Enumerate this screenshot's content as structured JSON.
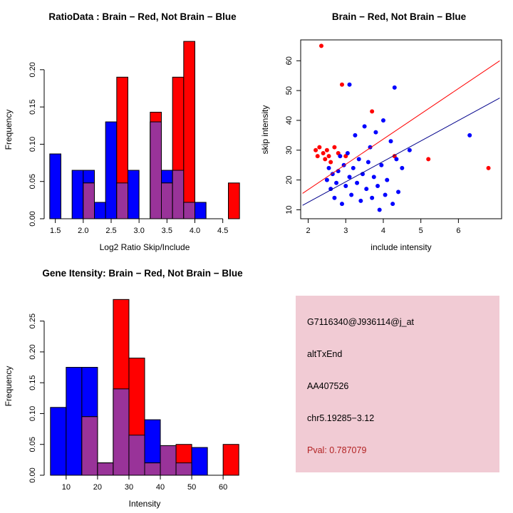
{
  "figure": {
    "background": "#ffffff"
  },
  "chart_data": [
    {
      "type": "bar",
      "variant": "overlapping-histogram",
      "title": "RatioData : Brain − Red, Not Brain − Blue",
      "xlabel": "Log2 Ratio Skip/Include",
      "ylabel": "Frequency",
      "xlim": [
        1.3,
        4.9
      ],
      "ylim": [
        0,
        0.24
      ],
      "xticks": {
        "values": [
          1.5,
          2.0,
          2.5,
          3.0,
          3.5,
          4.0,
          4.5
        ],
        "labels": [
          "1.5",
          "2.0",
          "2.5",
          "3.0",
          "3.5",
          "4.0",
          "4.5"
        ]
      },
      "yticks": {
        "values": [
          0,
          0.05,
          0.1,
          0.15,
          0.2
        ],
        "labels": [
          "0.00",
          "0.05",
          "0.10",
          "0.15",
          "0.20"
        ]
      },
      "bin_width": 0.2,
      "bin_starts": [
        1.4,
        1.6,
        1.8,
        2.0,
        2.2,
        2.4,
        2.6,
        2.8,
        3.0,
        3.2,
        3.4,
        3.6,
        3.8,
        4.0,
        4.2,
        4.4,
        4.6
      ],
      "series": [
        {
          "name": "Not Brain",
          "color": "#0000ff",
          "values": [
            0.087,
            0,
            0.065,
            0.065,
            0.022,
            0.13,
            0.048,
            0.065,
            0,
            0.13,
            0.065,
            0.065,
            0.022,
            0.022,
            0,
            0,
            0
          ]
        },
        {
          "name": "Brain",
          "color": "#ff0000",
          "values": [
            0,
            0,
            0,
            0.048,
            0,
            0,
            0.19,
            0,
            0,
            0.143,
            0.048,
            0.19,
            0.238,
            0,
            0,
            0,
            0.048
          ]
        }
      ],
      "overlap_color": "#993399",
      "grid": false
    },
    {
      "type": "scatter",
      "title": "Brain − Red, Not Brain − Blue",
      "xlabel": "include intensity",
      "ylabel": "skip intensity",
      "xlim": [
        1.8,
        7.15
      ],
      "ylim": [
        7,
        67
      ],
      "xticks": {
        "values": [
          2,
          3,
          4,
          5,
          6
        ],
        "labels": [
          "2",
          "3",
          "4",
          "5",
          "6"
        ]
      },
      "yticks": {
        "values": [
          10,
          20,
          30,
          40,
          50,
          60
        ],
        "labels": [
          "10",
          "20",
          "30",
          "40",
          "50",
          "60"
        ]
      },
      "series": [
        {
          "name": "Brain",
          "color": "#ff0000",
          "points": [
            [
              2.35,
              65
            ],
            [
              2.9,
              52
            ],
            [
              2.2,
              30
            ],
            [
              2.25,
              28
            ],
            [
              2.3,
              31
            ],
            [
              2.4,
              29
            ],
            [
              2.45,
              27
            ],
            [
              2.5,
              30
            ],
            [
              2.55,
              28
            ],
            [
              2.6,
              26
            ],
            [
              2.7,
              31
            ],
            [
              2.8,
              29
            ],
            [
              3.0,
              28
            ],
            [
              3.7,
              43
            ],
            [
              4.3,
              28
            ],
            [
              5.2,
              27
            ],
            [
              6.8,
              24
            ]
          ]
        },
        {
          "name": "Not Brain",
          "color": "#0000ff",
          "points": [
            [
              2.5,
              20
            ],
            [
              2.55,
              24
            ],
            [
              2.6,
              17
            ],
            [
              2.65,
              22
            ],
            [
              2.7,
              14
            ],
            [
              2.75,
              19
            ],
            [
              2.8,
              23
            ],
            [
              2.85,
              28
            ],
            [
              2.9,
              12
            ],
            [
              2.95,
              25
            ],
            [
              3.0,
              18
            ],
            [
              3.05,
              29
            ],
            [
              3.1,
              52
            ],
            [
              3.1,
              21
            ],
            [
              3.15,
              15
            ],
            [
              3.2,
              24
            ],
            [
              3.25,
              35
            ],
            [
              3.3,
              19
            ],
            [
              3.35,
              27
            ],
            [
              3.4,
              13
            ],
            [
              3.45,
              22
            ],
            [
              3.5,
              38
            ],
            [
              3.55,
              17
            ],
            [
              3.6,
              26
            ],
            [
              3.65,
              31
            ],
            [
              3.7,
              14
            ],
            [
              3.75,
              21
            ],
            [
              3.8,
              36
            ],
            [
              3.85,
              18
            ],
            [
              3.9,
              10
            ],
            [
              3.95,
              25
            ],
            [
              4.0,
              40
            ],
            [
              4.05,
              15
            ],
            [
              4.1,
              20
            ],
            [
              4.2,
              33
            ],
            [
              4.25,
              12
            ],
            [
              4.3,
              51
            ],
            [
              4.35,
              27
            ],
            [
              4.4,
              16
            ],
            [
              4.5,
              24
            ],
            [
              4.7,
              30
            ],
            [
              6.3,
              35
            ]
          ]
        }
      ],
      "lines": [
        {
          "name": "brain-fit",
          "color": "#ff0000",
          "x1": 1.85,
          "y1": 15.5,
          "x2": 7.1,
          "y2": 60
        },
        {
          "name": "notbrain-fit",
          "color": "#00008b",
          "x1": 1.85,
          "y1": 11.5,
          "x2": 7.1,
          "y2": 47.5
        }
      ],
      "grid": false
    },
    {
      "type": "bar",
      "variant": "overlapping-histogram",
      "title": "Gene Itensity: Brain − Red, Not Brain − Blue",
      "xlabel": "Intensity",
      "ylabel": "Frequency",
      "xlim": [
        3,
        67
      ],
      "ylim": [
        0,
        0.29
      ],
      "xticks": {
        "values": [
          10,
          20,
          30,
          40,
          50,
          60
        ],
        "labels": [
          "10",
          "20",
          "30",
          "40",
          "50",
          "60"
        ]
      },
      "yticks": {
        "values": [
          0,
          0.05,
          0.1,
          0.15,
          0.2,
          0.25
        ],
        "labels": [
          "0.00",
          "0.05",
          "0.10",
          "0.15",
          "0.20",
          "0.25"
        ]
      },
      "bin_width": 5,
      "bin_starts": [
        5,
        10,
        15,
        20,
        25,
        30,
        35,
        40,
        45,
        50,
        55,
        60
      ],
      "series": [
        {
          "name": "Not Brain",
          "color": "#0000ff",
          "values": [
            0.11,
            0.175,
            0.175,
            0.02,
            0.14,
            0.065,
            0.09,
            0.048,
            0.02,
            0.045,
            0,
            0
          ]
        },
        {
          "name": "Brain",
          "color": "#ff0000",
          "values": [
            0,
            0,
            0.095,
            0.02,
            0.285,
            0.19,
            0.02,
            0.048,
            0.05,
            0,
            0,
            0.05
          ]
        }
      ],
      "overlap_color": "#993399",
      "grid": false
    }
  ],
  "info_panel": {
    "background": "#f1cbd4",
    "lines": [
      {
        "text": "G7116340@J936114@j_at",
        "color": "#000000"
      },
      {
        "text": "altTxEnd",
        "color": "#000000"
      },
      {
        "text": "AA407526",
        "color": "#000000"
      },
      {
        "text": "chr5.19285−3.12",
        "color": "#000000"
      },
      {
        "text": "Pval: 0.787079",
        "color": "#b22222"
      }
    ]
  }
}
